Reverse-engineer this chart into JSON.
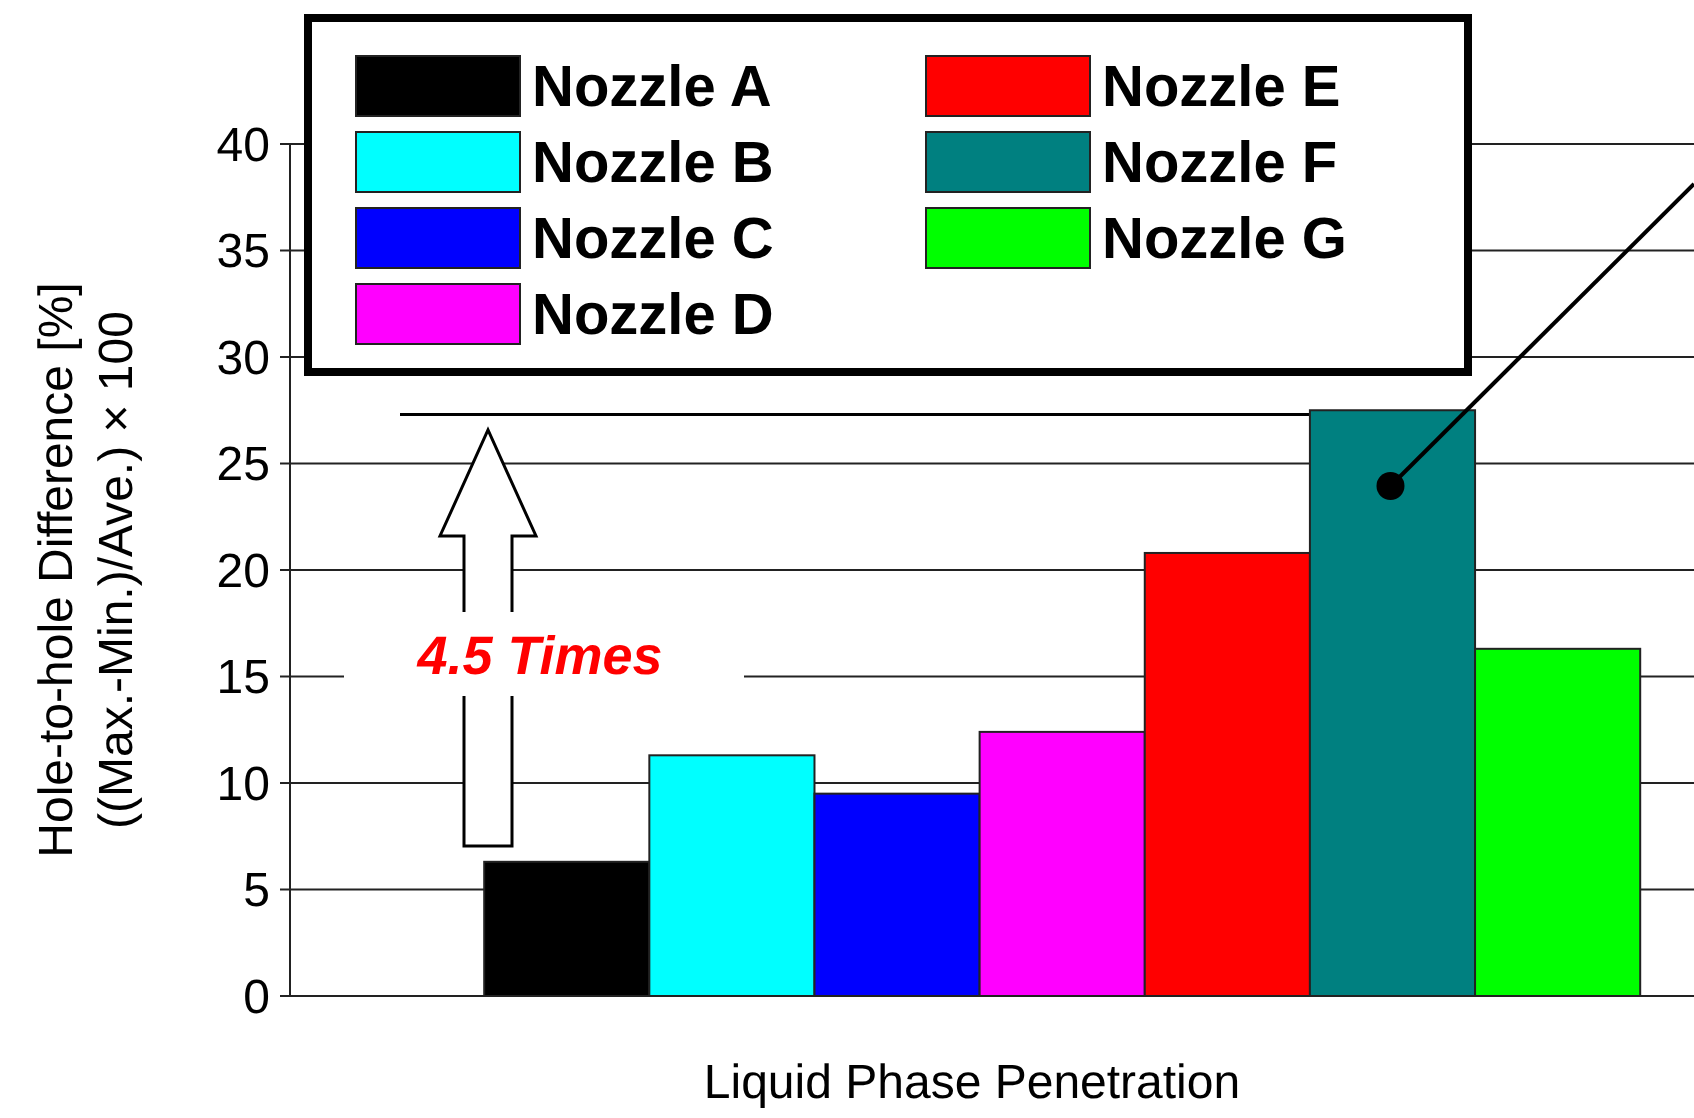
{
  "chart_data": {
    "type": "bar",
    "xlabel": "Liquid Phase Penetration",
    "ylabel": "Hole-to-hole Difference [%]\n((Max.-Min.)/Ave.) × 100",
    "categories": [
      null
    ],
    "series": [
      {
        "name": "Nozzle A",
        "color": "#000000",
        "values": [
          6.3
        ]
      },
      {
        "name": "Nozzle B",
        "color": "#00ffff",
        "values": [
          11.3
        ]
      },
      {
        "name": "Nozzle C",
        "color": "#0000ff",
        "values": [
          9.5
        ]
      },
      {
        "name": "Nozzle D",
        "color": "#ff00ff",
        "values": [
          12.4
        ]
      },
      {
        "name": "Nozzle E",
        "color": "#ff0000",
        "values": [
          20.8
        ]
      },
      {
        "name": "Nozzle F",
        "color": "#008080",
        "values": [
          27.5
        ]
      },
      {
        "name": "Nozzle G",
        "color": "#00ff00",
        "values": [
          16.3
        ]
      }
    ],
    "ylim": [
      0,
      40
    ],
    "yticks": [
      0,
      5,
      10,
      15,
      20,
      25,
      30,
      35,
      40
    ],
    "grid": "y",
    "legend": "top left",
    "ref_lines": [
      {
        "axis": "y",
        "value": 27.3,
        "color": "#000000"
      }
    ],
    "annotations": [
      "4.5 Times"
    ]
  }
}
